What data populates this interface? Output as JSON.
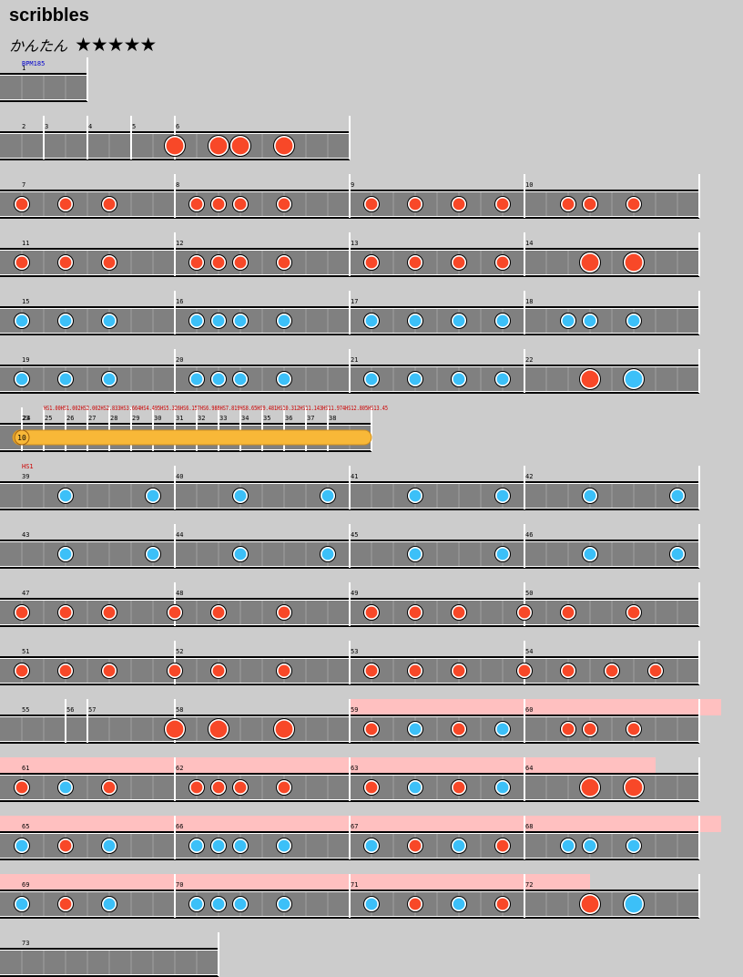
{
  "song": {
    "title": "scribbles",
    "difficulty_label": "かんたん",
    "stars": "★★★★★"
  },
  "colors": {
    "don": "#f84828",
    "ka": "#3cc0f8",
    "roll": "#f8b838",
    "gogo": "#ffc0c0",
    "lane": "#808080"
  },
  "bpm_label": "BPM185",
  "roll_hits": "10",
  "scroll_labels_row7": [
    "HS1.00",
    "HS1.002",
    "HS2.002",
    "HS2.833",
    "HS3.664",
    "HS4.495",
    "HS5.326",
    "HS6.157",
    "HS6.988",
    "HS7.819",
    "HS8.65",
    "HS9.481",
    "HS10.312",
    "HS11.143",
    "HS11.974",
    "HS12.805",
    "HS13.45"
  ],
  "scroll_label_row8": "HS1",
  "rows": [
    {
      "m": [
        {
          "n": "1",
          "beats": 4
        }
      ],
      "notes": []
    },
    {
      "m": [
        {
          "n": "2",
          "beats": 2
        },
        {
          "n": "3",
          "beats": 2
        },
        {
          "n": "4",
          "beats": 2
        },
        {
          "n": "5",
          "beats": 2
        },
        {
          "n": "6",
          "beats": 8
        }
      ],
      "notes": [
        {
          "b": 7,
          "t": "D"
        },
        {
          "b": 9,
          "t": "D"
        },
        {
          "b": 10,
          "t": "D"
        },
        {
          "b": 12,
          "t": "D"
        }
      ]
    },
    {
      "m": [
        {
          "n": "7",
          "beats": 8
        },
        {
          "n": "8",
          "beats": 8
        },
        {
          "n": "9",
          "beats": 8
        },
        {
          "n": "10",
          "beats": 8
        }
      ],
      "notes": [
        {
          "b": 0,
          "t": "d"
        },
        {
          "b": 2,
          "t": "d"
        },
        {
          "b": 4,
          "t": "d"
        },
        {
          "b": 8,
          "t": "d"
        },
        {
          "b": 9,
          "t": "d"
        },
        {
          "b": 10,
          "t": "d"
        },
        {
          "b": 12,
          "t": "d"
        },
        {
          "b": 16,
          "t": "d"
        },
        {
          "b": 18,
          "t": "d"
        },
        {
          "b": 20,
          "t": "d"
        },
        {
          "b": 22,
          "t": "d"
        },
        {
          "b": 25,
          "t": "d"
        },
        {
          "b": 26,
          "t": "d"
        },
        {
          "b": 28,
          "t": "d"
        }
      ]
    },
    {
      "m": [
        {
          "n": "11",
          "beats": 8
        },
        {
          "n": "12",
          "beats": 8
        },
        {
          "n": "13",
          "beats": 8
        },
        {
          "n": "14",
          "beats": 8
        }
      ],
      "notes": [
        {
          "b": 0,
          "t": "d"
        },
        {
          "b": 2,
          "t": "d"
        },
        {
          "b": 4,
          "t": "d"
        },
        {
          "b": 8,
          "t": "d"
        },
        {
          "b": 9,
          "t": "d"
        },
        {
          "b": 10,
          "t": "d"
        },
        {
          "b": 12,
          "t": "d"
        },
        {
          "b": 16,
          "t": "d"
        },
        {
          "b": 18,
          "t": "d"
        },
        {
          "b": 20,
          "t": "d"
        },
        {
          "b": 22,
          "t": "d"
        },
        {
          "b": 26,
          "t": "D"
        },
        {
          "b": 28,
          "t": "D"
        }
      ]
    },
    {
      "m": [
        {
          "n": "15",
          "beats": 8
        },
        {
          "n": "16",
          "beats": 8
        },
        {
          "n": "17",
          "beats": 8
        },
        {
          "n": "18",
          "beats": 8
        }
      ],
      "notes": [
        {
          "b": 0,
          "t": "k"
        },
        {
          "b": 2,
          "t": "k"
        },
        {
          "b": 4,
          "t": "k"
        },
        {
          "b": 8,
          "t": "k"
        },
        {
          "b": 9,
          "t": "k"
        },
        {
          "b": 10,
          "t": "k"
        },
        {
          "b": 12,
          "t": "k"
        },
        {
          "b": 16,
          "t": "k"
        },
        {
          "b": 18,
          "t": "k"
        },
        {
          "b": 20,
          "t": "k"
        },
        {
          "b": 22,
          "t": "k"
        },
        {
          "b": 25,
          "t": "k"
        },
        {
          "b": 26,
          "t": "k"
        },
        {
          "b": 28,
          "t": "k"
        }
      ]
    },
    {
      "m": [
        {
          "n": "19",
          "beats": 8
        },
        {
          "n": "20",
          "beats": 8
        },
        {
          "n": "21",
          "beats": 8
        },
        {
          "n": "22",
          "beats": 8
        }
      ],
      "notes": [
        {
          "b": 0,
          "t": "k"
        },
        {
          "b": 2,
          "t": "k"
        },
        {
          "b": 4,
          "t": "k"
        },
        {
          "b": 8,
          "t": "k"
        },
        {
          "b": 9,
          "t": "k"
        },
        {
          "b": 10,
          "t": "k"
        },
        {
          "b": 12,
          "t": "k"
        },
        {
          "b": 16,
          "t": "k"
        },
        {
          "b": 18,
          "t": "k"
        },
        {
          "b": 20,
          "t": "k"
        },
        {
          "b": 22,
          "t": "k"
        },
        {
          "b": 26,
          "t": "D"
        },
        {
          "b": 28,
          "t": "K"
        }
      ]
    },
    {
      "m": [
        {
          "n": "23",
          "beats": 1
        },
        {
          "n": "24",
          "beats": 1
        },
        {
          "n": "25",
          "beats": 1
        },
        {
          "n": "26",
          "beats": 1
        },
        {
          "n": "27",
          "beats": 1
        },
        {
          "n": "28",
          "beats": 1
        },
        {
          "n": "29",
          "beats": 1
        },
        {
          "n": "30",
          "beats": 1
        },
        {
          "n": "31",
          "beats": 1
        },
        {
          "n": "32",
          "beats": 1
        },
        {
          "n": "33",
          "beats": 1
        },
        {
          "n": "34",
          "beats": 1
        },
        {
          "n": "35",
          "beats": 1
        },
        {
          "n": "36",
          "beats": 1
        },
        {
          "n": "37",
          "beats": 1
        },
        {
          "n": "38",
          "beats": 2
        }
      ],
      "notes": [],
      "roll": [
        0,
        16
      ]
    },
    {
      "m": [
        {
          "n": "39",
          "beats": 8
        },
        {
          "n": "40",
          "beats": 8
        },
        {
          "n": "41",
          "beats": 8
        },
        {
          "n": "42",
          "beats": 8
        }
      ],
      "notes": [
        {
          "b": 2,
          "t": "k"
        },
        {
          "b": 6,
          "t": "k"
        },
        {
          "b": 10,
          "t": "k"
        },
        {
          "b": 14,
          "t": "k"
        },
        {
          "b": 18,
          "t": "k"
        },
        {
          "b": 22,
          "t": "k"
        },
        {
          "b": 26,
          "t": "k"
        },
        {
          "b": 30,
          "t": "k"
        }
      ]
    },
    {
      "m": [
        {
          "n": "43",
          "beats": 8
        },
        {
          "n": "44",
          "beats": 8
        },
        {
          "n": "45",
          "beats": 8
        },
        {
          "n": "46",
          "beats": 8
        }
      ],
      "notes": [
        {
          "b": 2,
          "t": "k"
        },
        {
          "b": 6,
          "t": "k"
        },
        {
          "b": 10,
          "t": "k"
        },
        {
          "b": 14,
          "t": "k"
        },
        {
          "b": 18,
          "t": "k"
        },
        {
          "b": 22,
          "t": "k"
        },
        {
          "b": 26,
          "t": "k"
        },
        {
          "b": 30,
          "t": "k"
        }
      ]
    },
    {
      "m": [
        {
          "n": "47",
          "beats": 8
        },
        {
          "n": "48",
          "beats": 8
        },
        {
          "n": "49",
          "beats": 8
        },
        {
          "n": "50",
          "beats": 8
        }
      ],
      "notes": [
        {
          "b": 0,
          "t": "d"
        },
        {
          "b": 2,
          "t": "d"
        },
        {
          "b": 4,
          "t": "d"
        },
        {
          "b": 7,
          "t": "d"
        },
        {
          "b": 9,
          "t": "d"
        },
        {
          "b": 12,
          "t": "d"
        },
        {
          "b": 16,
          "t": "d"
        },
        {
          "b": 18,
          "t": "d"
        },
        {
          "b": 20,
          "t": "d"
        },
        {
          "b": 23,
          "t": "d"
        },
        {
          "b": 25,
          "t": "d"
        },
        {
          "b": 28,
          "t": "d"
        }
      ]
    },
    {
      "m": [
        {
          "n": "51",
          "beats": 8
        },
        {
          "n": "52",
          "beats": 8
        },
        {
          "n": "53",
          "beats": 8
        },
        {
          "n": "54",
          "beats": 8
        }
      ],
      "notes": [
        {
          "b": 0,
          "t": "d"
        },
        {
          "b": 2,
          "t": "d"
        },
        {
          "b": 4,
          "t": "d"
        },
        {
          "b": 7,
          "t": "d"
        },
        {
          "b": 9,
          "t": "d"
        },
        {
          "b": 12,
          "t": "d"
        },
        {
          "b": 16,
          "t": "d"
        },
        {
          "b": 18,
          "t": "d"
        },
        {
          "b": 20,
          "t": "d"
        },
        {
          "b": 23,
          "t": "d"
        },
        {
          "b": 25,
          "t": "d"
        },
        {
          "b": 27,
          "t": "d"
        },
        {
          "b": 29,
          "t": "d"
        }
      ]
    },
    {
      "m": [
        {
          "n": "55",
          "beats": 3
        },
        {
          "n": "56",
          "beats": 1
        },
        {
          "n": "57",
          "beats": 4
        },
        {
          "n": "58",
          "beats": 8
        },
        {
          "n": "59",
          "beats": 8
        },
        {
          "n": "60",
          "beats": 8
        }
      ],
      "gogo": [
        16,
        33
      ],
      "notes": [
        {
          "b": 7,
          "t": "D"
        },
        {
          "b": 9,
          "t": "D"
        },
        {
          "b": 12,
          "t": "D"
        },
        {
          "b": 16,
          "t": "d"
        },
        {
          "b": 18,
          "t": "k"
        },
        {
          "b": 20,
          "t": "d"
        },
        {
          "b": 22,
          "t": "k"
        },
        {
          "b": 25,
          "t": "d"
        },
        {
          "b": 26,
          "t": "d"
        },
        {
          "b": 28,
          "t": "d"
        }
      ]
    },
    {
      "m": [
        {
          "n": "61",
          "beats": 8
        },
        {
          "n": "62",
          "beats": 8
        },
        {
          "n": "63",
          "beats": 8
        },
        {
          "n": "64",
          "beats": 8
        }
      ],
      "gogo": [
        0,
        30
      ],
      "notes": [
        {
          "b": 0,
          "t": "d"
        },
        {
          "b": 2,
          "t": "k"
        },
        {
          "b": 4,
          "t": "d"
        },
        {
          "b": 8,
          "t": "d"
        },
        {
          "b": 9,
          "t": "d"
        },
        {
          "b": 10,
          "t": "d"
        },
        {
          "b": 12,
          "t": "d"
        },
        {
          "b": 16,
          "t": "d"
        },
        {
          "b": 18,
          "t": "k"
        },
        {
          "b": 20,
          "t": "d"
        },
        {
          "b": 22,
          "t": "k"
        },
        {
          "b": 26,
          "t": "D"
        },
        {
          "b": 28,
          "t": "D"
        }
      ]
    },
    {
      "m": [
        {
          "n": "65",
          "beats": 8
        },
        {
          "n": "66",
          "beats": 8
        },
        {
          "n": "67",
          "beats": 8
        },
        {
          "n": "68",
          "beats": 8
        }
      ],
      "gogo": [
        0,
        33
      ],
      "notes": [
        {
          "b": 0,
          "t": "k"
        },
        {
          "b": 2,
          "t": "d"
        },
        {
          "b": 4,
          "t": "k"
        },
        {
          "b": 8,
          "t": "k"
        },
        {
          "b": 9,
          "t": "k"
        },
        {
          "b": 10,
          "t": "k"
        },
        {
          "b": 12,
          "t": "k"
        },
        {
          "b": 16,
          "t": "k"
        },
        {
          "b": 18,
          "t": "d"
        },
        {
          "b": 20,
          "t": "k"
        },
        {
          "b": 22,
          "t": "d"
        },
        {
          "b": 25,
          "t": "k"
        },
        {
          "b": 26,
          "t": "k"
        },
        {
          "b": 28,
          "t": "k"
        }
      ]
    },
    {
      "m": [
        {
          "n": "69",
          "beats": 8
        },
        {
          "n": "70",
          "beats": 8
        },
        {
          "n": "71",
          "beats": 8
        },
        {
          "n": "72",
          "beats": 8
        }
      ],
      "gogo": [
        0,
        27
      ],
      "notes": [
        {
          "b": 0,
          "t": "k"
        },
        {
          "b": 2,
          "t": "d"
        },
        {
          "b": 4,
          "t": "k"
        },
        {
          "b": 8,
          "t": "k"
        },
        {
          "b": 9,
          "t": "k"
        },
        {
          "b": 10,
          "t": "k"
        },
        {
          "b": 12,
          "t": "k"
        },
        {
          "b": 16,
          "t": "k"
        },
        {
          "b": 18,
          "t": "d"
        },
        {
          "b": 20,
          "t": "k"
        },
        {
          "b": 22,
          "t": "d"
        },
        {
          "b": 26,
          "t": "D"
        },
        {
          "b": 28,
          "t": "K"
        }
      ]
    },
    {
      "m": [
        {
          "n": "73",
          "beats": 10
        }
      ],
      "notes": []
    }
  ]
}
